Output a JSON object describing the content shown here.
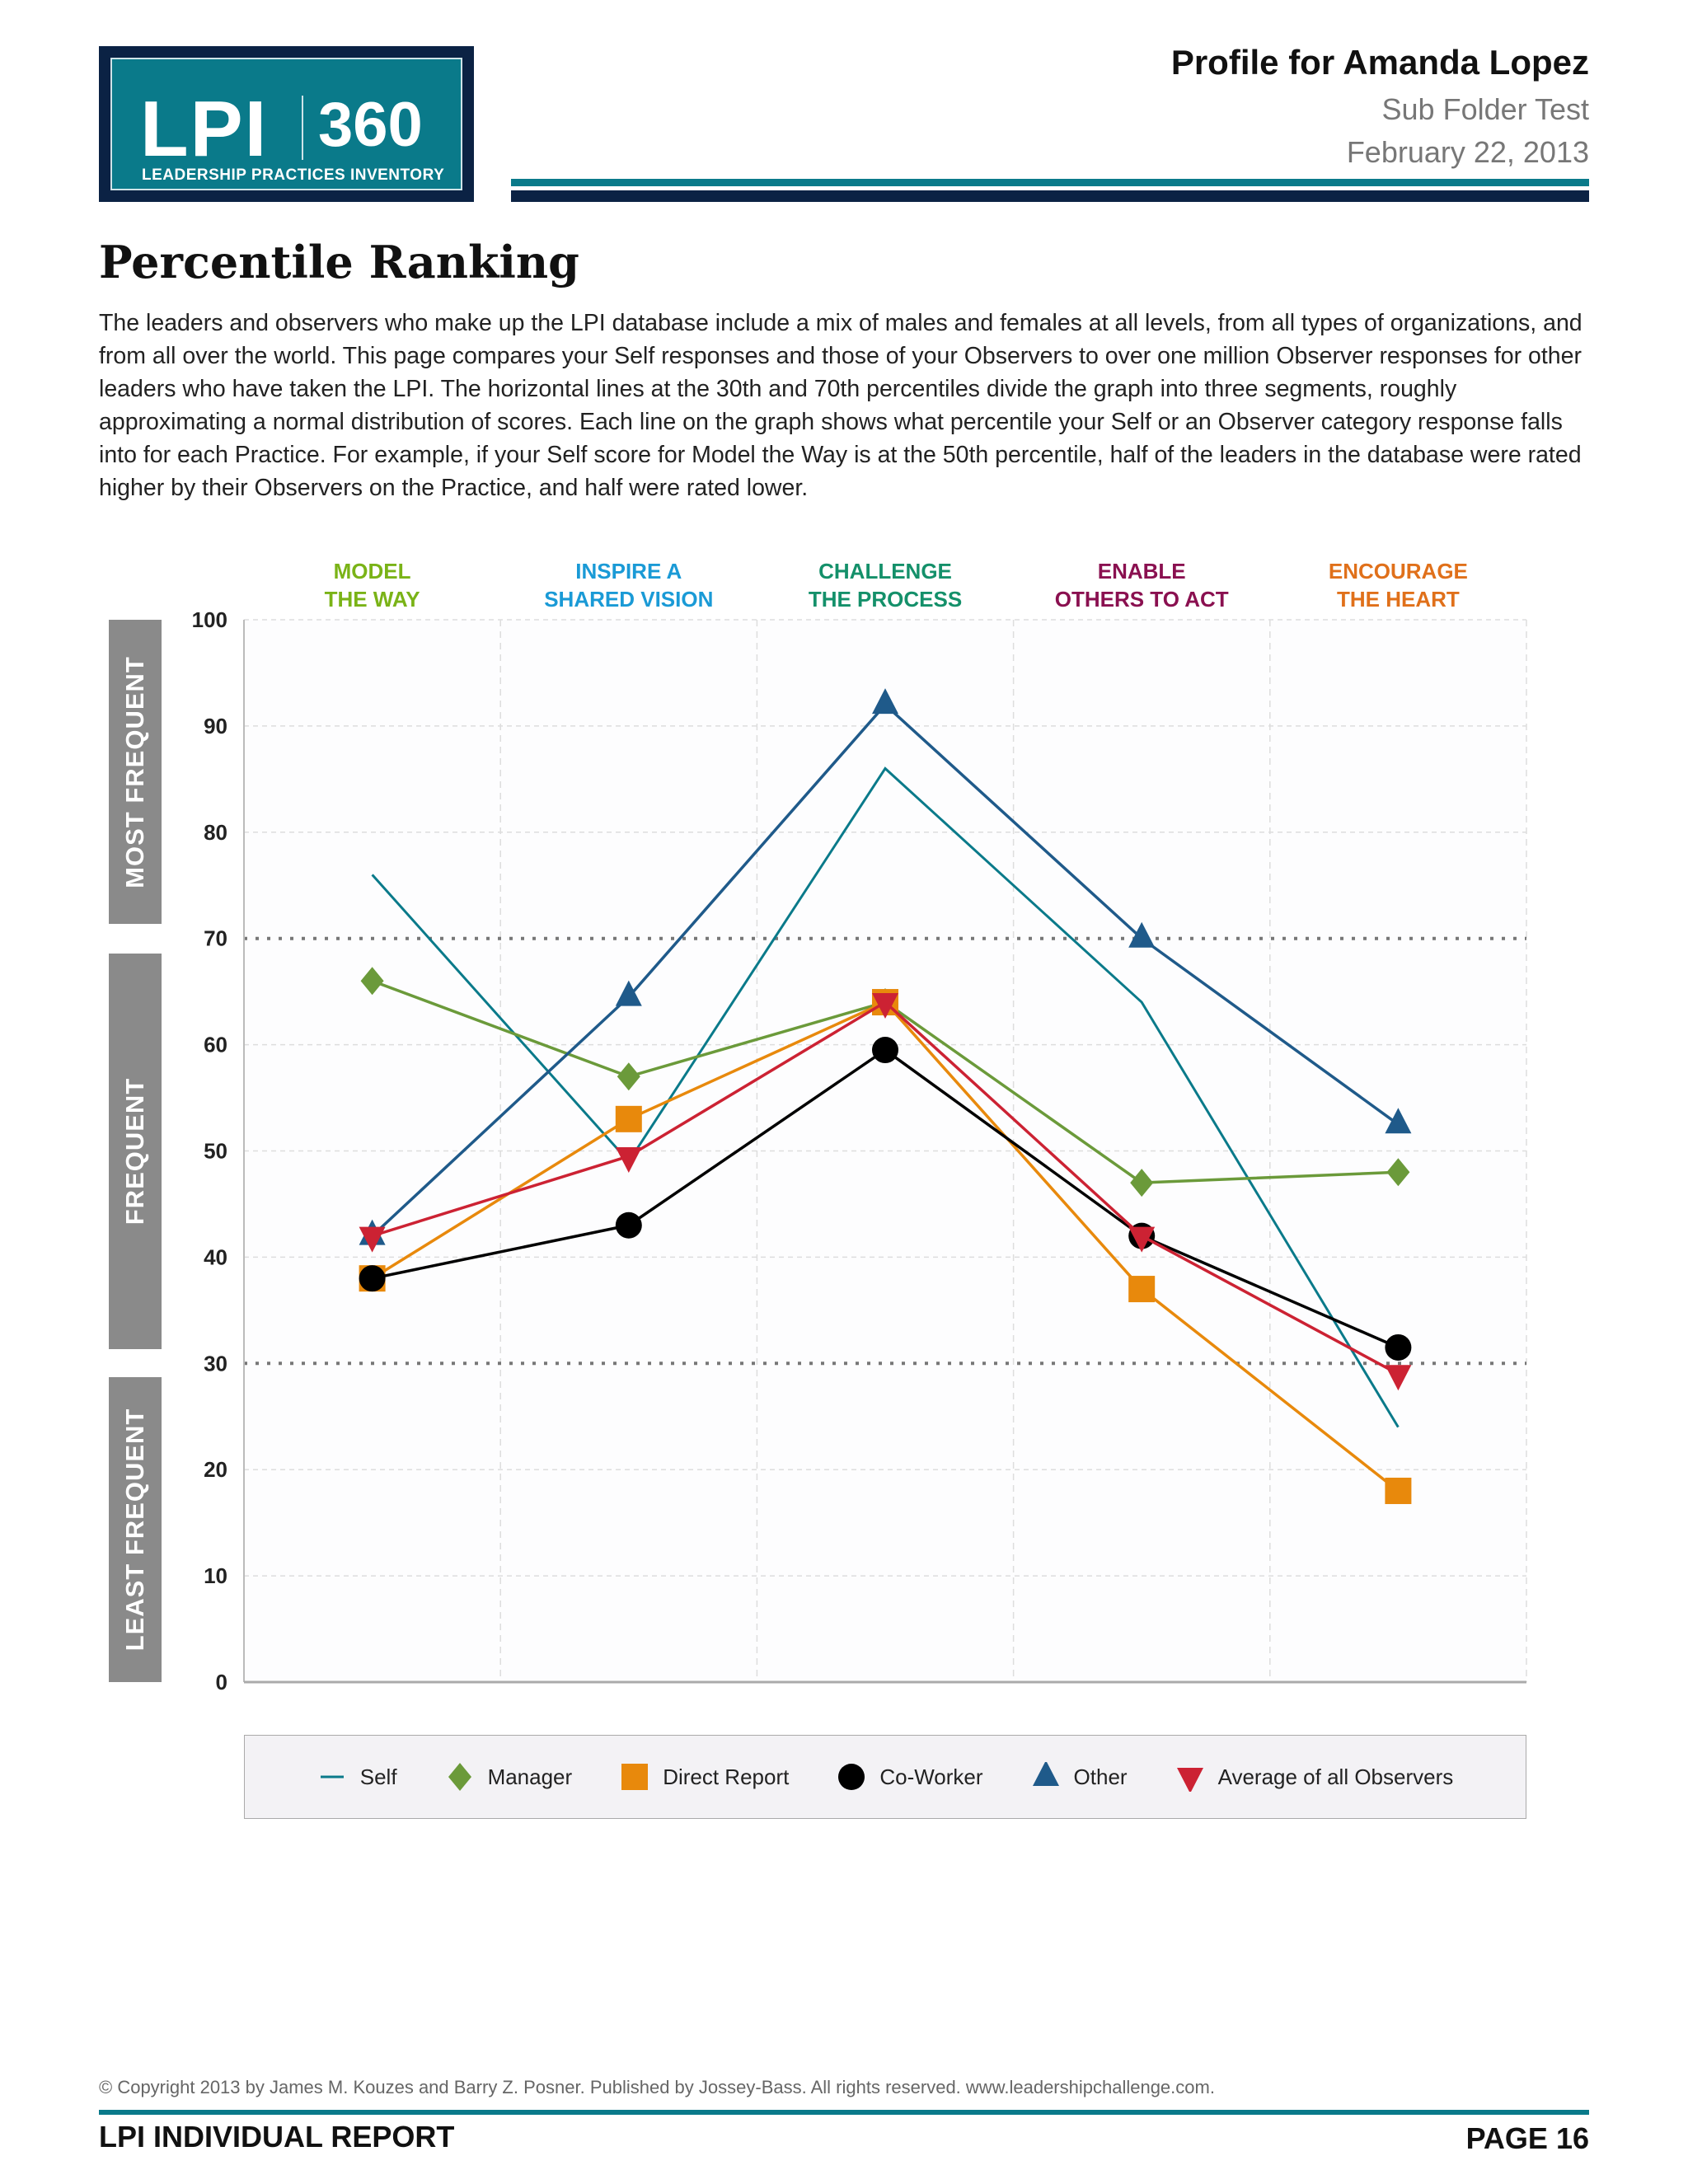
{
  "logo": {
    "brand": "LPI",
    "number": "360",
    "subtitle": "LEADERSHIP PRACTICES INVENTORY"
  },
  "header": {
    "title": "Profile for Amanda Lopez",
    "folder": "Sub Folder Test",
    "date": "February 22, 2013"
  },
  "section": {
    "title": "Percentile Ranking",
    "intro": "The leaders and observers who make up the LPI database include a mix of males and females at all levels, from all types of organizations, and from all over the world. This page compares your Self responses and those of your Observers to over one million Observer responses for other leaders who have taken the LPI. The horizontal lines at the 30th and 70th percentiles divide the graph into three segments, roughly approximating a normal distribution of scores. Each line on the graph shows what percentile your Self or an Observer category response falls into for each Practice. For example, if your Self score for Model the Way is at the 50th percentile, half of the leaders in the database were rated higher by their Observers on the Practice, and half were rated lower."
  },
  "bands": {
    "most": "MOST FREQUENT",
    "frequent": "FREQUENT",
    "least": "LEAST FREQUENT"
  },
  "chart_data": {
    "type": "line",
    "categories": [
      {
        "line1": "MODEL",
        "line2": "THE WAY",
        "color": "#7ab317"
      },
      {
        "line1": "INSPIRE A",
        "line2": "SHARED VISION",
        "color": "#1a9ad6"
      },
      {
        "line1": "CHALLENGE",
        "line2": "THE PROCESS",
        "color": "#14906a"
      },
      {
        "line1": "ENABLE",
        "line2": "OTHERS TO ACT",
        "color": "#8a1050"
      },
      {
        "line1": "ENCOURAGE",
        "line2": "THE HEART",
        "color": "#e0701a"
      }
    ],
    "ylim": [
      0,
      100
    ],
    "yticks": [
      "0",
      "10",
      "20",
      "30",
      "40",
      "50",
      "60",
      "70",
      "80",
      "90",
      "100"
    ],
    "reference_lines": [
      30,
      70
    ],
    "grid": true,
    "legend_position": "bottom",
    "series": [
      {
        "name": "Self",
        "marker": "none",
        "color": "#0a7a8a",
        "values": [
          76,
          49,
          86,
          64,
          24
        ]
      },
      {
        "name": "Manager",
        "marker": "diamond",
        "color": "#6b9a3a",
        "values": [
          66,
          57,
          64,
          47,
          48
        ]
      },
      {
        "name": "Direct Report",
        "marker": "square",
        "color": "#e8890c",
        "values": [
          38,
          53,
          64,
          37,
          18
        ]
      },
      {
        "name": "Co-Worker",
        "marker": "circle",
        "color": "#000000",
        "values": [
          38,
          43,
          59.5,
          42,
          31.5
        ]
      },
      {
        "name": "Other",
        "marker": "triangle-up",
        "color": "#1f5a8a",
        "values": [
          42,
          64.5,
          92,
          70,
          52.5
        ]
      },
      {
        "name": "Average of all Observers",
        "marker": "triangle-down",
        "color": "#cc2233",
        "values": [
          42,
          49.5,
          64,
          42,
          29
        ]
      }
    ]
  },
  "footer": {
    "copyright": "© Copyright 2013 by James M. Kouzes and Barry Z. Posner. Published by Jossey-Bass. All rights reserved. www.leadershipchallenge.com.",
    "report": "LPI INDIVIDUAL REPORT",
    "page": "PAGE 16"
  }
}
